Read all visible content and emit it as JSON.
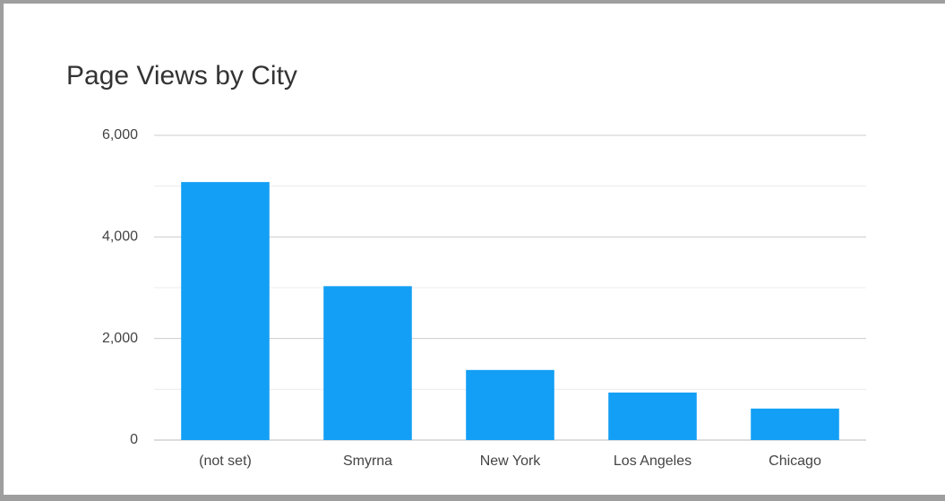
{
  "chart_data": {
    "type": "bar",
    "title": "Page Views by City",
    "categories": [
      "(not set)",
      "Smyrna",
      "New York",
      "Los Angeles",
      "Chicago"
    ],
    "values": [
      5080,
      3030,
      1380,
      935,
      620
    ],
    "color": "#139ff5",
    "ylim": [
      0,
      6000
    ],
    "yticks": [
      0,
      {
        "value": 2000,
        "label": "2,000"
      },
      {
        "value": 4000,
        "label": "4,000"
      },
      {
        "value": 6000,
        "label": "6,000"
      }
    ],
    "minor_yticks": [
      1000,
      3000,
      5000
    ],
    "grid": true
  }
}
